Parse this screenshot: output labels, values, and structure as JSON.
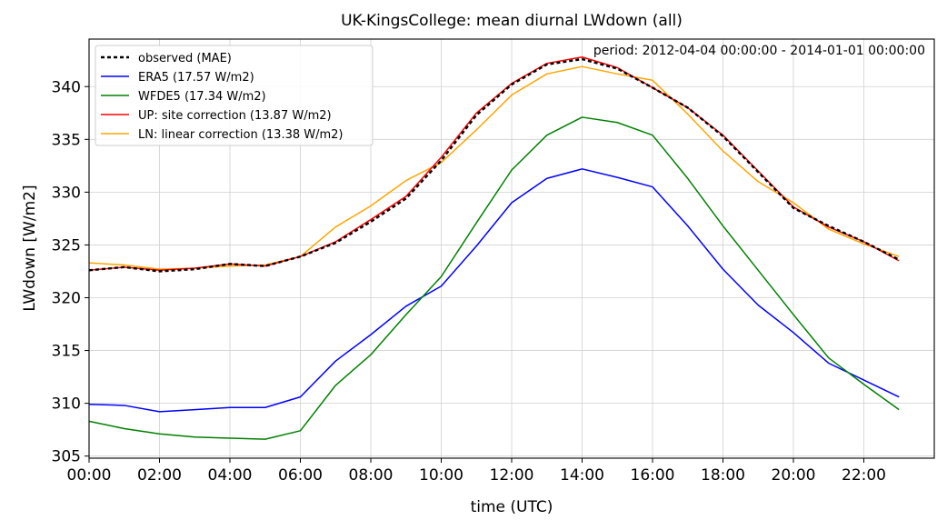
{
  "chart_data": {
    "type": "line",
    "title": "UK-KingsCollege: mean diurnal LWdown (all)",
    "xlabel": "time (UTC)",
    "ylabel": "LWdown [W/m2]",
    "annotation": "period: 2012-04-04 00:00:00 - 2014-01-01 00:00:00",
    "xlim": [
      0,
      24
    ],
    "ylim": [
      304.8,
      344.5
    ],
    "xticks": [
      0,
      2,
      4,
      6,
      8,
      10,
      12,
      14,
      16,
      18,
      20,
      22
    ],
    "xtick_labels": [
      "00:00",
      "02:00",
      "04:00",
      "06:00",
      "08:00",
      "10:00",
      "12:00",
      "14:00",
      "16:00",
      "18:00",
      "20:00",
      "22:00"
    ],
    "yticks": [
      305,
      310,
      315,
      320,
      325,
      330,
      335,
      340
    ],
    "grid": true,
    "legend_position": "top-left",
    "x": [
      0,
      1,
      2,
      3,
      4,
      5,
      6,
      7,
      8,
      9,
      10,
      11,
      12,
      13,
      14,
      15,
      16,
      17,
      18,
      19,
      20,
      21,
      22,
      23
    ],
    "series": [
      {
        "name": "observed (MAE)",
        "color": "#000000",
        "dashed": true,
        "values": [
          322.6,
          322.9,
          322.5,
          322.7,
          323.2,
          323.0,
          323.9,
          325.2,
          327.2,
          329.4,
          333.0,
          337.3,
          340.2,
          342.1,
          342.6,
          341.7,
          339.9,
          338.0,
          335.3,
          331.9,
          328.5,
          326.8,
          325.3,
          323.6
        ]
      },
      {
        "name": "ERA5 (17.57 W/m2)",
        "color": "#0000ff",
        "dashed": false,
        "values": [
          309.9,
          309.8,
          309.2,
          309.4,
          309.6,
          309.6,
          310.6,
          314.0,
          316.5,
          319.2,
          321.1,
          324.9,
          329.0,
          331.3,
          332.2,
          331.4,
          330.5,
          326.8,
          322.7,
          319.3,
          316.7,
          313.8,
          312.2,
          310.6
        ]
      },
      {
        "name": "WFDE5 (17.34 W/m2)",
        "color": "#008000",
        "dashed": false,
        "values": [
          308.3,
          307.6,
          307.1,
          306.8,
          306.7,
          306.6,
          307.4,
          311.7,
          314.6,
          318.4,
          322.0,
          327.1,
          332.1,
          335.4,
          337.1,
          336.6,
          335.4,
          331.3,
          326.8,
          322.6,
          318.4,
          314.3,
          311.8,
          309.4
        ]
      },
      {
        "name": "UP: site correction (13.87 W/m2)",
        "color": "#ff0000",
        "dashed": false,
        "values": [
          322.6,
          322.9,
          322.6,
          322.8,
          323.2,
          323.0,
          323.9,
          325.3,
          327.4,
          329.6,
          333.3,
          337.5,
          340.3,
          342.2,
          342.8,
          341.8,
          339.9,
          338.0,
          335.4,
          332.0,
          328.6,
          326.7,
          325.3,
          323.5
        ]
      },
      {
        "name": "LN: linear correction (13.38 W/m2)",
        "color": "#ffa500",
        "dashed": false,
        "values": [
          323.3,
          323.1,
          322.7,
          322.8,
          323.0,
          323.1,
          323.9,
          326.7,
          328.7,
          331.1,
          332.8,
          335.9,
          339.2,
          341.2,
          341.9,
          341.2,
          340.6,
          337.4,
          333.9,
          331.0,
          329.0,
          326.5,
          325.1,
          323.9
        ]
      }
    ]
  }
}
